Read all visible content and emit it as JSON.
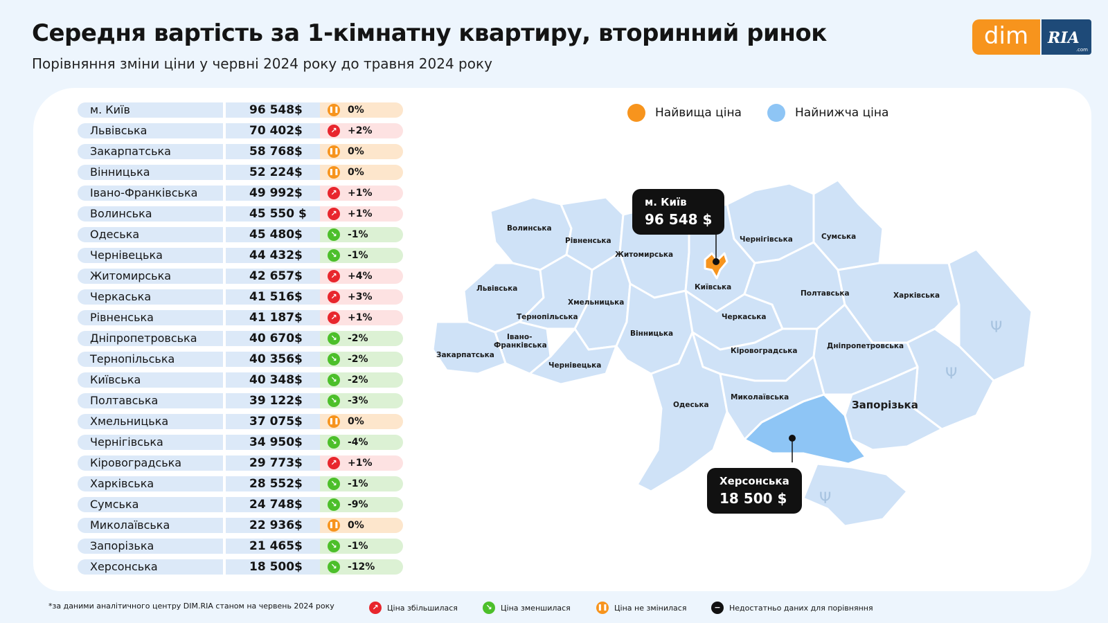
{
  "header": {
    "title": "Середня вартість за 1-кімнатну квартиру, вторинний ринок",
    "subtitle": "Порівняння зміни ціни у червні 2024 року до травня 2024 року"
  },
  "logo": {
    "dim": "dim",
    "ria": "RIA",
    "com": ".com"
  },
  "legend": {
    "highest": "Найвища ціна",
    "lowest": "Найнижча ціна"
  },
  "colors": {
    "highest": "#f7941d",
    "lowest": "#8ec5f5",
    "region": "#cfe2f7",
    "up": "#e8262d",
    "down": "#4cbf2a",
    "same": "#f7941d",
    "accent_dark": "#111111"
  },
  "callouts": {
    "kyiv": {
      "name": "м. Київ",
      "price": "96 548 $"
    },
    "kherson": {
      "name": "Херсонська",
      "price": "18 500 $"
    }
  },
  "map_labels": {
    "volynska": "Волинська",
    "rivnenska": "Рівненська",
    "zhytomyrska": "Житомирська",
    "chernihivska": "Чернігівська",
    "sumska": "Сумська",
    "lvivska": "Львівська",
    "kyivska": "Київська",
    "poltavska": "Полтавська",
    "kharkivska": "Харківська",
    "khmelnytska": "Хмельницька",
    "ternopilska": "Тернопільська",
    "cherkaska": "Черкаська",
    "vinnytska": "Вінницька",
    "ivano1": "Івано-",
    "ivano2": "Франківська",
    "zakarpatska": "Закарпатська",
    "chernivetska": "Чернівецька",
    "kirovohradska": "Кіровоградська",
    "dnipropetrovska": "Дніпропетровська",
    "odeska": "Одеська",
    "mykolaivska": "Миколаївська",
    "zaporizka": "Запорізька"
  },
  "footer": {
    "source": "*за даними аналітичного центру DIM.RIA станом на червень 2024 року",
    "up": "Ціна збільшилася",
    "down": "Ціна зменшилася",
    "same": "Ціна не змінилася",
    "nodata": "Недостатньо даних для порівняння"
  },
  "chart_data": {
    "type": "table",
    "title": "Середня вартість за 1-кімнатну квартиру, вторинний ринок",
    "columns": [
      "region",
      "price",
      "change"
    ],
    "rows": [
      {
        "region": "м. Київ",
        "price": "96 548$",
        "change": "0%",
        "trend": "same"
      },
      {
        "region": "Львівська",
        "price": "70 402$",
        "change": "+2%",
        "trend": "up"
      },
      {
        "region": "Закарпатська",
        "price": "58 768$",
        "change": "0%",
        "trend": "same"
      },
      {
        "region": "Вінницька",
        "price": "52 224$",
        "change": "0%",
        "trend": "same"
      },
      {
        "region": "Івано-Франківська",
        "price": "49 992$",
        "change": "+1%",
        "trend": "up"
      },
      {
        "region": "Волинська",
        "price": "45 550 $",
        "change": "+1%",
        "trend": "up"
      },
      {
        "region": "Одеська",
        "price": "45 480$",
        "change": "-1%",
        "trend": "down"
      },
      {
        "region": "Чернівецька",
        "price": "44 432$",
        "change": "-1%",
        "trend": "down"
      },
      {
        "region": "Житомирська",
        "price": "42 657$",
        "change": "+4%",
        "trend": "up"
      },
      {
        "region": "Черкаська",
        "price": "41 516$",
        "change": "+3%",
        "trend": "up"
      },
      {
        "region": "Рівненська",
        "price": "41 187$",
        "change": "+1%",
        "trend": "up"
      },
      {
        "region": "Дніпропетровська",
        "price": "40 670$",
        "change": "-2%",
        "trend": "down"
      },
      {
        "region": "Тернопільська",
        "price": "40 356$",
        "change": "-2%",
        "trend": "down"
      },
      {
        "region": "Київська",
        "price": "40 348$",
        "change": "-2%",
        "trend": "down"
      },
      {
        "region": "Полтавська",
        "price": "39 122$",
        "change": "-3%",
        "trend": "down"
      },
      {
        "region": "Хмельницька",
        "price": "37 075$",
        "change": "0%",
        "trend": "same"
      },
      {
        "region": "Чернігівська",
        "price": "34 950$",
        "change": "-4%",
        "trend": "down"
      },
      {
        "region": "Кіровоградська",
        "price": "29 773$",
        "change": "+1%",
        "trend": "up"
      },
      {
        "region": "Харківська",
        "price": "28 552$",
        "change": "-1%",
        "trend": "down"
      },
      {
        "region": "Сумська",
        "price": "24 748$",
        "change": "-9%",
        "trend": "down"
      },
      {
        "region": "Миколаївська",
        "price": "22 936$",
        "change": "0%",
        "trend": "same"
      },
      {
        "region": "Запорізька",
        "price": "21 465$",
        "change": "-1%",
        "trend": "down"
      },
      {
        "region": "Херсонська",
        "price": "18 500$",
        "change": "-12%",
        "trend": "down"
      }
    ]
  }
}
